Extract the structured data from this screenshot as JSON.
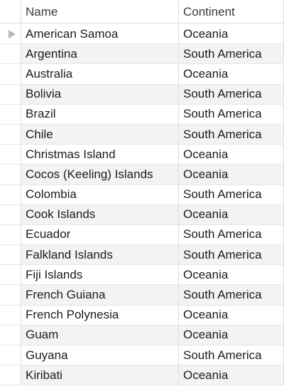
{
  "table": {
    "columns": [
      "Name",
      "Continent"
    ],
    "rows": [
      {
        "name": "American Samoa",
        "continent": "Oceania",
        "current": true
      },
      {
        "name": "Argentina",
        "continent": "South America"
      },
      {
        "name": "Australia",
        "continent": "Oceania"
      },
      {
        "name": "Bolivia",
        "continent": "South America"
      },
      {
        "name": "Brazil",
        "continent": "South America"
      },
      {
        "name": "Chile",
        "continent": "South America"
      },
      {
        "name": "Christmas Island",
        "continent": "Oceania"
      },
      {
        "name": "Cocos (Keeling) Islands",
        "continent": "Oceania"
      },
      {
        "name": "Colombia",
        "continent": "South America"
      },
      {
        "name": "Cook Islands",
        "continent": "Oceania"
      },
      {
        "name": "Ecuador",
        "continent": "South America"
      },
      {
        "name": "Falkland Islands",
        "continent": "South America"
      },
      {
        "name": "Fiji Islands",
        "continent": "Oceania"
      },
      {
        "name": "French Guiana",
        "continent": "South America"
      },
      {
        "name": "French Polynesia",
        "continent": "Oceania"
      },
      {
        "name": "Guam",
        "continent": "Oceania"
      },
      {
        "name": "Guyana",
        "continent": "South America"
      },
      {
        "name": "Kiribati",
        "continent": "Oceania"
      }
    ]
  },
  "icons": {
    "current_row": "row-pointer-arrow-icon"
  },
  "colors": {
    "alt_row": "#f3f3f3",
    "grid_line": "#dcdcdc",
    "pointer": "#b6b6b6"
  }
}
